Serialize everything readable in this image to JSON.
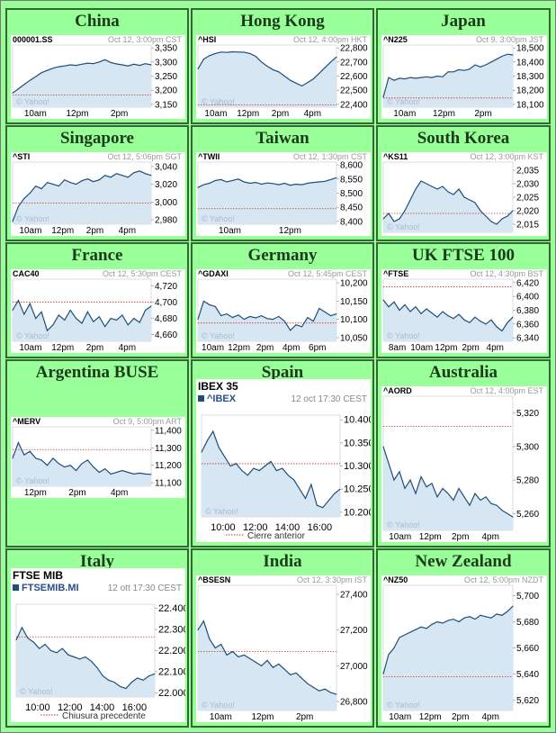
{
  "colors": {
    "page_bg": "#99ff99",
    "area_fill": "#d6e6f2",
    "line": "#1f4e79",
    "prev_close": "#cc3333",
    "border": "#336633"
  },
  "cells": [
    {
      "id": "china",
      "title": "China",
      "symbol": "000001.SS",
      "date": "Oct 12, 3:00pm CST",
      "yticks": [
        "3,350",
        "3,300",
        "3,250",
        "3,200",
        "3,150"
      ],
      "xticks": [
        "10am",
        "12pm",
        "2pm"
      ],
      "watermark": "© Yahoo!",
      "chart_data": {
        "type": "line",
        "x_labels": [
          "10am",
          "12pm",
          "2pm"
        ],
        "ylim": [
          3140,
          3360
        ],
        "prev_close": 3183,
        "values": [
          3190,
          3205,
          3220,
          3235,
          3248,
          3262,
          3270,
          3278,
          3283,
          3286,
          3290,
          3288,
          3292,
          3296,
          3294,
          3300,
          3308,
          3298,
          3293,
          3290,
          3286,
          3292,
          3288,
          3294,
          3290
        ]
      }
    },
    {
      "id": "hongkong",
      "title": "Hong Kong",
      "symbol": "^HSI",
      "date": "Oct 12, 4:00pm HKT",
      "yticks": [
        "22,800",
        "22,700",
        "22,600",
        "22,500",
        "22,400"
      ],
      "xticks": [
        "10am",
        "12pm",
        "2pm",
        "4pm"
      ],
      "watermark": "© Yahoo!",
      "chart_data": {
        "type": "line",
        "x_labels": [
          "10am",
          "12pm",
          "2pm",
          "4pm"
        ],
        "ylim": [
          22380,
          22820
        ],
        "prev_close": 22395,
        "values": [
          22650,
          22720,
          22745,
          22760,
          22770,
          22768,
          22772,
          22770,
          22769,
          22760,
          22740,
          22700,
          22670,
          22645,
          22630,
          22600,
          22570,
          22550,
          22530,
          22555,
          22580,
          22620,
          22660,
          22700,
          22735
        ]
      }
    },
    {
      "id": "japan",
      "title": "Japan",
      "symbol": "^N225",
      "date": "Oct 9, 3:00pm JST",
      "yticks": [
        "18,500",
        "18,400",
        "18,300",
        "18,200",
        "18,100"
      ],
      "xticks": [
        "10am",
        "12pm",
        "2pm"
      ],
      "watermark": "© Yahoo!",
      "chart_data": {
        "type": "line",
        "x_labels": [
          "10am",
          "12pm",
          "2pm"
        ],
        "ylim": [
          18080,
          18520
        ],
        "prev_close": 18145,
        "values": [
          18150,
          18290,
          18270,
          18285,
          18280,
          18290,
          18285,
          18290,
          18295,
          18290,
          18300,
          18295,
          18330,
          18330,
          18345,
          18340,
          18350,
          18380,
          18365,
          18380,
          18400,
          18420,
          18440,
          18455,
          18450
        ]
      }
    },
    {
      "id": "singapore",
      "title": "Singapore",
      "symbol": "^STI",
      "date": "Oct 12, 5:06pm SGT",
      "yticks": [
        "3,040",
        "3,020",
        "3,000",
        "2,980"
      ],
      "xticks": [
        "10am",
        "12pm",
        "2pm",
        "4pm"
      ],
      "watermark": "© Yahoo!",
      "chart_data": {
        "type": "line",
        "x_labels": [
          "10am",
          "12pm",
          "2pm",
          "4pm"
        ],
        "ylim": [
          2975,
          3045
        ],
        "prev_close": 2999,
        "values": [
          2978,
          2995,
          3004,
          3010,
          3018,
          3015,
          3022,
          3020,
          3018,
          3025,
          3022,
          3020,
          3024,
          3026,
          3023,
          3025,
          3030,
          3028,
          3032,
          3030,
          3028,
          3033,
          3035,
          3032,
          3030
        ]
      }
    },
    {
      "id": "taiwan",
      "title": "Taiwan",
      "symbol": "^TWII",
      "date": "Oct 12, 1:30pm CST",
      "yticks": [
        "8,600",
        "8,550",
        "8,500",
        "8,450",
        "8,400"
      ],
      "xticks": [
        "10am",
        "12pm"
      ],
      "watermark": "© Yahoo!",
      "chart_data": {
        "type": "line",
        "x_labels": [
          "10am",
          "12pm"
        ],
        "ylim": [
          8390,
          8610
        ],
        "prev_close": 8445,
        "values": [
          8520,
          8530,
          8535,
          8545,
          8548,
          8540,
          8545,
          8550,
          8540,
          8535,
          8538,
          8532,
          8536,
          8534,
          8530,
          8535,
          8528,
          8532,
          8530,
          8535,
          8538,
          8540,
          8542,
          8548,
          8555
        ]
      }
    },
    {
      "id": "southkorea",
      "title": "South Korea",
      "symbol": "^KS11",
      "date": "Oct 12, 3:00pm KST",
      "yticks": [
        "2,035",
        "2,030",
        "2,025",
        "2,020",
        "2,015"
      ],
      "xticks": [],
      "watermark": "© Yahoo!",
      "chart_data": {
        "type": "line",
        "x_labels": [],
        "ylim": [
          2012,
          2038
        ],
        "prev_close": 2019,
        "values": [
          2017,
          2019,
          2016,
          2017,
          2020,
          2024,
          2028,
          2031,
          2030,
          2029,
          2028,
          2029,
          2027,
          2026,
          2028,
          2025,
          2024,
          2023,
          2020,
          2018,
          2016,
          2015,
          2017,
          2018,
          2020
        ]
      }
    },
    {
      "id": "france",
      "title": "France",
      "symbol": "CAC40",
      "date": "Oct 12, 5:30pm CEST",
      "yticks": [
        "4,720",
        "4,700",
        "4,680",
        "4,660"
      ],
      "xticks": [
        "10am",
        "12pm",
        "2pm",
        "4pm"
      ],
      "watermark": "© Yahoo!",
      "chart_data": {
        "type": "line",
        "x_labels": [
          "10am",
          "12pm",
          "2pm",
          "4pm"
        ],
        "ylim": [
          4652,
          4728
        ],
        "prev_close": 4700,
        "values": [
          4690,
          4702,
          4685,
          4698,
          4680,
          4688,
          4665,
          4672,
          4684,
          4678,
          4690,
          4680,
          4674,
          4688,
          4676,
          4682,
          4670,
          4680,
          4678,
          4684,
          4672,
          4680,
          4675,
          4690,
          4695
        ]
      }
    },
    {
      "id": "germany",
      "title": "Germany",
      "symbol": "^GDAXI",
      "date": "Oct 12, 5:45pm CEST",
      "yticks": [
        "10,200",
        "10,150",
        "10,100",
        "10,050"
      ],
      "xticks": [
        "10am",
        "12pm",
        "2pm",
        "4pm",
        "6pm"
      ],
      "watermark": "© Yahoo!",
      "chart_data": {
        "type": "line",
        "x_labels": [
          "10am",
          "12pm",
          "2pm",
          "4pm",
          "6pm"
        ],
        "ylim": [
          10040,
          10210
        ],
        "prev_close": 10090,
        "values": [
          10100,
          10150,
          10140,
          10135,
          10110,
          10115,
          10105,
          10112,
          10100,
          10108,
          10104,
          10110,
          10102,
          10100,
          10108,
          10095,
          10070,
          10085,
          10080,
          10105,
          10095,
          10130,
          10120,
          10110,
          10115
        ]
      }
    },
    {
      "id": "uk",
      "title": "UK FTSE 100",
      "symbol": "^FTSE",
      "date": "Oct 12, 4:30pm BST",
      "yticks": [
        "6,420",
        "6,400",
        "6,380",
        "6,360",
        "6,340"
      ],
      "xticks": [
        "8am",
        "10am",
        "12pm",
        "2pm",
        "4pm"
      ],
      "watermark": "© Yahoo!",
      "chart_data": {
        "type": "line",
        "x_labels": [
          "8am",
          "10am",
          "12pm",
          "2pm",
          "4pm"
        ],
        "ylim": [
          6335,
          6425
        ],
        "prev_close": 6414,
        "values": [
          6395,
          6385,
          6392,
          6380,
          6388,
          6378,
          6385,
          6375,
          6382,
          6376,
          6370,
          6378,
          6372,
          6368,
          6374,
          6366,
          6362,
          6370,
          6364,
          6360,
          6366,
          6356,
          6350,
          6362,
          6370
        ]
      }
    },
    {
      "id": "argentina",
      "title": "Argentina BUSE",
      "symbol": "^MERV",
      "date": "Oct 9, 5:00pm ART",
      "yticks": [
        "11,400",
        "11,300",
        "11,200",
        "11,100"
      ],
      "xticks": [
        "12pm",
        "2pm",
        "4pm"
      ],
      "watermark": "© Yahoo!",
      "chart_data": {
        "type": "line",
        "x_labels": [
          "12pm",
          "2pm",
          "4pm"
        ],
        "ylim": [
          11080,
          11420
        ],
        "prev_close": 11290,
        "values": [
          11240,
          11330,
          11260,
          11280,
          11240,
          11230,
          11200,
          11240,
          11210,
          11190,
          11200,
          11170,
          11210,
          11230,
          11190,
          11160,
          11180,
          11150,
          11160,
          11170,
          11160,
          11150,
          11155,
          11150,
          11148
        ]
      }
    },
    {
      "id": "spain",
      "title": "Spain",
      "big": true,
      "header": "IBEX 35",
      "symbol": "^IBEX",
      "date": "12 oct 17:30 CEST",
      "yticks": [
        "10.400",
        "10.350",
        "10.300",
        "10.250",
        "10.200"
      ],
      "xticks": [
        "10:00",
        "12:00",
        "14:00",
        "16:00"
      ],
      "watermark": "© Yahoo!",
      "legend": "Cierre anterior",
      "chart_data": {
        "type": "line",
        "x_labels": [
          "10:00",
          "12:00",
          "14:00",
          "16:00"
        ],
        "ylim": [
          10190,
          10410
        ],
        "prev_close": 10305,
        "values": [
          10330,
          10355,
          10375,
          10340,
          10320,
          10300,
          10305,
          10290,
          10280,
          10295,
          10290,
          10300,
          10310,
          10290,
          10295,
          10280,
          10270,
          10250,
          10230,
          10260,
          10215,
          10210,
          10225,
          10240,
          10250
        ]
      }
    },
    {
      "id": "australia",
      "title": "Australia",
      "symbol": "^AORD",
      "date": "Oct 12, 4:00pm EST",
      "yticks": [
        "5,320",
        "5,300",
        "5,280",
        "5,260"
      ],
      "xticks": [
        "10am",
        "12pm",
        "2pm",
        "4pm"
      ],
      "watermark": "© Yahoo!",
      "chart_data": {
        "type": "line",
        "x_labels": [
          "10am",
          "12pm",
          "2pm",
          "4pm"
        ],
        "ylim": [
          5250,
          5330
        ],
        "prev_close": 5312,
        "values": [
          5300,
          5290,
          5280,
          5285,
          5275,
          5280,
          5272,
          5282,
          5276,
          5278,
          5270,
          5275,
          5272,
          5268,
          5275,
          5270,
          5265,
          5272,
          5268,
          5270,
          5266,
          5265,
          5262,
          5260,
          5258
        ]
      }
    },
    {
      "id": "italy",
      "title": "Italy",
      "big": true,
      "header": "FTSE MIB",
      "symbol": "FTSEMIB.MI",
      "date": "12 ott 17:30 CEST",
      "yticks": [
        "22.400",
        "22.300",
        "22.200",
        "22.100",
        "22.000"
      ],
      "xticks": [
        "10:00",
        "12:00",
        "14:00",
        "16:00"
      ],
      "watermark": "© Yahoo!",
      "legend": "Chiusura precedente",
      "chart_data": {
        "type": "line",
        "x_labels": [
          "10:00",
          "12:00",
          "14:00",
          "16:00"
        ],
        "ylim": [
          21980,
          22420
        ],
        "prev_close": 22265,
        "values": [
          22250,
          22310,
          22260,
          22240,
          22210,
          22230,
          22200,
          22190,
          22210,
          22180,
          22170,
          22160,
          22170,
          22150,
          22120,
          22080,
          22060,
          22050,
          22030,
          22020,
          22050,
          22070,
          22060,
          22080,
          22090
        ]
      }
    },
    {
      "id": "india",
      "title": "India",
      "symbol": "^BSESN",
      "date": "Oct 12, 3:30pm IST",
      "yticks": [
        "27,400",
        "27,200",
        "27,000",
        "26,800"
      ],
      "xticks": [
        "10am",
        "12pm",
        "2pm"
      ],
      "watermark": "© Yahoo!",
      "chart_data": {
        "type": "line",
        "x_labels": [
          "10am",
          "12pm",
          "2pm"
        ],
        "ylim": [
          26750,
          27450
        ],
        "prev_close": 27080,
        "values": [
          27200,
          27250,
          27150,
          27100,
          27120,
          27060,
          27080,
          27050,
          27060,
          27040,
          27020,
          27000,
          27030,
          26990,
          27010,
          26980,
          26950,
          26960,
          26930,
          26900,
          26880,
          26860,
          26870,
          26850,
          26840
        ]
      }
    },
    {
      "id": "newzealand",
      "title": "New Zealand",
      "symbol": "^NZ50",
      "date": "Oct 12, 5:00pm NZDT",
      "yticks": [
        "5,700",
        "5,680",
        "5,660",
        "5,640",
        "5,620"
      ],
      "xticks": [
        "10am",
        "12pm",
        "2pm",
        "4pm"
      ],
      "watermark": "© Yahoo!",
      "chart_data": {
        "type": "line",
        "x_labels": [
          "10am",
          "12pm",
          "2pm",
          "4pm"
        ],
        "ylim": [
          5612,
          5708
        ],
        "prev_close": 5638,
        "values": [
          5640,
          5655,
          5660,
          5668,
          5670,
          5672,
          5674,
          5676,
          5675,
          5678,
          5680,
          5679,
          5681,
          5682,
          5680,
          5683,
          5684,
          5682,
          5685,
          5684,
          5683,
          5686,
          5685,
          5688,
          5692
        ]
      }
    }
  ]
}
